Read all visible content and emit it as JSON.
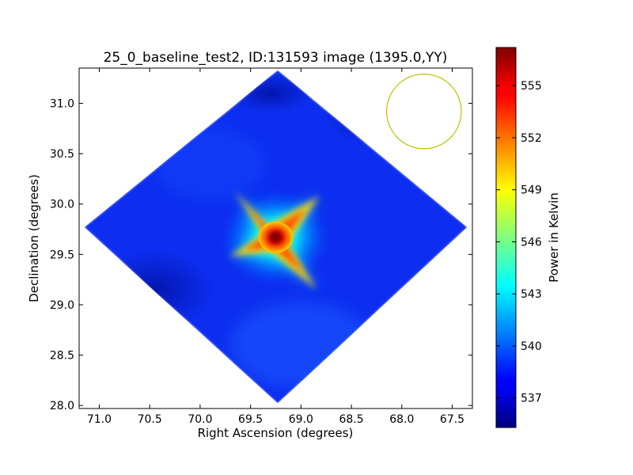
{
  "chart_data": {
    "type": "heatmap",
    "title": "25_0_baseline_test2, ID:131593 image (1395.0,YY)",
    "xlabel": "Right Ascension (degrees)",
    "ylabel": "Declination (degrees)",
    "xlim": [
      71.2,
      67.3
    ],
    "ylim": [
      27.97,
      31.35
    ],
    "x_ticks": [
      71.0,
      70.5,
      70.0,
      69.5,
      69.0,
      68.5,
      68.0,
      67.5
    ],
    "x_tick_labels": [
      "71.0",
      "70.5",
      "70.0",
      "69.5",
      "69.0",
      "68.5",
      "68.0",
      "67.5"
    ],
    "y_ticks": [
      28.0,
      28.5,
      29.0,
      29.5,
      30.0,
      30.5,
      31.0
    ],
    "y_tick_labels": [
      "28.0",
      "28.5",
      "29.0",
      "29.5",
      "30.0",
      "30.5",
      "31.0"
    ],
    "colorbar": {
      "label": "Power in Kelvin",
      "range": [
        535.3,
        557.2
      ],
      "ticks": [
        537,
        540,
        543,
        546,
        549,
        552,
        555
      ],
      "tick_labels": [
        "537",
        "540",
        "543",
        "546",
        "549",
        "552",
        "555"
      ],
      "colormap": "jet"
    },
    "footprint_corners": [
      {
        "x": 69.23,
        "y": 31.33
      },
      {
        "x": 67.35,
        "y": 29.77
      },
      {
        "x": 69.23,
        "y": 28.02
      },
      {
        "x": 71.15,
        "y": 29.77
      }
    ],
    "background_level": 538.0,
    "peak": {
      "x": 69.25,
      "y": 29.67,
      "value": 557.0
    },
    "beam_circle": {
      "center_x": 67.78,
      "center_y": 30.92,
      "radius_deg": 0.37,
      "color": "#bfbf00"
    }
  }
}
